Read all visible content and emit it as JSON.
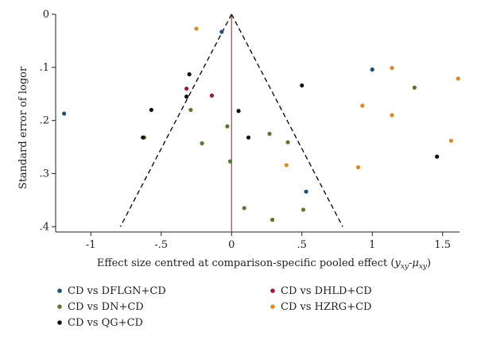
{
  "chart_data": {
    "type": "scatter",
    "title": "",
    "xlabel_main": "Effect size centred at comparison-specific pooled effect (",
    "xlabel_var": "y",
    "xlabel_sub1": "xy",
    "xlabel_minus": "-",
    "xlabel_mu": "μ",
    "xlabel_sub2": "xy",
    "xlabel_close": ")",
    "ylabel": "Standard error of logor",
    "xlim": [
      -1.25,
      1.62
    ],
    "ylim": [
      0,
      0.41
    ],
    "y_reversed": true,
    "x_ticks": [
      -1,
      -0.5,
      0,
      0.5,
      1,
      1.5
    ],
    "x_tick_labels": [
      "-1",
      "-.5",
      "0",
      ".5",
      "1",
      "1.5"
    ],
    "y_ticks": [
      0,
      0.1,
      0.2,
      0.3,
      0.4
    ],
    "y_tick_labels": [
      "0",
      ".1",
      ".2",
      ".3",
      ".4"
    ],
    "vertical_line": {
      "x": 0,
      "color": "#c0392b"
    },
    "funnel": {
      "apex": [
        0,
        0
      ],
      "left_base": [
        -0.79,
        0.4
      ],
      "right_base": [
        0.79,
        0.4
      ]
    },
    "legend_placement": "bottom",
    "series": [
      {
        "name": "CD vs DFLGN+CD",
        "color": "#1f4e79",
        "x": [
          -0.07,
          -1.19,
          1.0,
          0.53
        ],
        "y": [
          0.033,
          0.187,
          0.104,
          0.334
        ]
      },
      {
        "name": "CD vs DHLD+CD",
        "color": "#9b1b30",
        "x": [
          -0.32,
          -0.14
        ],
        "y": [
          0.14,
          0.153
        ]
      },
      {
        "name": "CD vs DN+CD",
        "color": "#5a7a2b",
        "x": [
          -0.62,
          -0.29,
          -0.03,
          -0.21,
          -0.01,
          0.27,
          0.4,
          0.09,
          0.29,
          0.51,
          1.3
        ],
        "y": [
          0.232,
          0.18,
          0.211,
          0.243,
          0.277,
          0.225,
          0.241,
          0.365,
          0.387,
          0.368,
          0.138
        ]
      },
      {
        "name": "CD vs HZRG+CD",
        "color": "#e08a1e",
        "x": [
          -0.25,
          1.14,
          1.61,
          0.93,
          1.14,
          1.56,
          0.9,
          0.39
        ],
        "y": [
          0.027,
          0.101,
          0.121,
          0.172,
          0.19,
          0.238,
          0.288,
          0.284
        ]
      },
      {
        "name": "CD vs QG+CD",
        "color": "#111111",
        "x": [
          -0.3,
          -0.32,
          -0.57,
          -0.63,
          0.05,
          0.12,
          0.5,
          1.46
        ],
        "y": [
          0.113,
          0.155,
          0.18,
          0.232,
          0.182,
          0.232,
          0.134,
          0.268
        ]
      }
    ]
  }
}
